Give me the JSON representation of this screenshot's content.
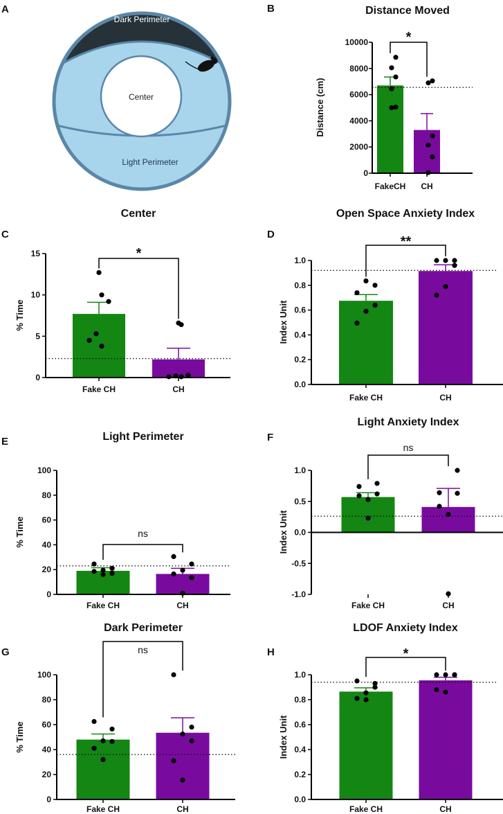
{
  "panel_letters": [
    "A",
    "B",
    "C",
    "D",
    "E",
    "F",
    "G",
    "H"
  ],
  "arena": {
    "dark_perimeter_label": "Dark Perimeter",
    "center_label": "Center",
    "light_perimeter_label": "Light Perimeter",
    "colors": {
      "dark": "#263238",
      "light": "#a8d4ec",
      "rim": "#5a87a8",
      "center": "#ffffff"
    }
  },
  "colors": {
    "fake": "#138613",
    "ch": "#780b9e"
  },
  "chart_data": [
    {
      "id": "B",
      "type": "bar",
      "title": "Distance Moved",
      "xlabel": "",
      "ylabel": "Distance (cm)",
      "categories": [
        "FakeCH",
        "CH"
      ],
      "values": [
        6700,
        3300
      ],
      "errors": [
        650,
        1250
      ],
      "points": [
        [
          8850,
          8050,
          7350,
          6450,
          5050,
          5000
        ],
        [
          7050,
          6900,
          2850,
          2150,
          1250,
          50
        ]
      ],
      "ylim": [
        0,
        10000
      ],
      "yticks": [
        0,
        2000,
        4000,
        6000,
        8000,
        10000
      ],
      "yticklabels": [
        "0",
        "2000",
        "4000",
        "6000",
        "8000",
        "10000"
      ],
      "baseline": 6550,
      "significance": "*"
    },
    {
      "id": "C",
      "type": "bar",
      "title": "Center",
      "xlabel": "",
      "ylabel": "% Time",
      "categories": [
        "Fake CH",
        "CH"
      ],
      "values": [
        7.7,
        2.2
      ],
      "errors": [
        1.4,
        1.35
      ],
      "points": [
        [
          12.7,
          10.0,
          9.2,
          5.3,
          4.5,
          3.8
        ],
        [
          6.6,
          6.4,
          0.3,
          0.2,
          0.1,
          0.1
        ]
      ],
      "ylim": [
        0,
        15
      ],
      "yticks": [
        0,
        5,
        10,
        15
      ],
      "yticklabels": [
        "0",
        "5",
        "10",
        "15"
      ],
      "baseline": 2.3,
      "significance": "*"
    },
    {
      "id": "D",
      "type": "bar",
      "title": "Open  Space Anxiety Index",
      "xlabel": "",
      "ylabel": "Index Unit",
      "categories": [
        "Fake CH",
        "CH"
      ],
      "values": [
        0.675,
        0.915
      ],
      "errors": [
        0.05,
        0.05
      ],
      "points": [
        [
          0.835,
          0.8,
          0.74,
          0.64,
          0.59,
          0.495
        ],
        [
          1.0,
          1.0,
          1.0,
          0.96,
          0.79,
          0.72
        ]
      ],
      "ylim": [
        0,
        1.0
      ],
      "yticks": [
        0,
        0.2,
        0.4,
        0.6,
        0.8,
        1.0
      ],
      "yticklabels": [
        "0.0",
        "0.2",
        "0.4",
        "0.6",
        "0.8",
        "1.0"
      ],
      "baseline": 0.92,
      "significance": "**"
    },
    {
      "id": "E",
      "type": "bar",
      "title": "Light  Perimeter",
      "xlabel": "",
      "ylabel": "% Time",
      "categories": [
        "Fake CH",
        "CH"
      ],
      "values": [
        19,
        16.5
      ],
      "errors": [
        2.5,
        4.5
      ],
      "points": [
        [
          24.5,
          21.0,
          19.5,
          18.5,
          17.0,
          16.0
        ],
        [
          30.5,
          24.5,
          19.5,
          16.5,
          13.5,
          1.0
        ]
      ],
      "ylim": [
        0,
        100
      ],
      "yticks": [
        0,
        20,
        40,
        60,
        80,
        100
      ],
      "yticklabels": [
        "0",
        "20",
        "40",
        "60",
        "80",
        "100"
      ],
      "baseline": 23,
      "significance": "ns"
    },
    {
      "id": "F",
      "type": "bar",
      "title": "Light Anxiety Index",
      "xlabel": "",
      "ylabel": "Index Unit",
      "categories": [
        "Fake CH",
        "CH"
      ],
      "values": [
        0.57,
        0.41
      ],
      "errors": [
        0.07,
        0.3
      ],
      "points": [
        [
          0.79,
          0.74,
          0.62,
          0.59,
          0.53,
          0.23
        ],
        [
          1.0,
          0.64,
          0.63,
          0.42,
          0.29,
          -0.99
        ]
      ],
      "ylim": [
        -1.0,
        1.0
      ],
      "yticks": [
        -1.0,
        -0.5,
        0,
        0.5,
        1.0
      ],
      "yticklabels": [
        "-1.0",
        "-0.5",
        "0.0",
        "0.5",
        "1.0"
      ],
      "baseline": 0.26,
      "significance": "ns"
    },
    {
      "id": "G",
      "type": "bar",
      "title": "Dark  Perimeter",
      "xlabel": "",
      "ylabel": "% Time",
      "categories": [
        "Fake CH",
        "CH"
      ],
      "values": [
        48,
        53.5
      ],
      "errors": [
        4.5,
        12
      ],
      "points": [
        [
          62.5,
          56.5,
          47.0,
          46.5,
          41.0,
          32.0
        ],
        [
          100.0,
          58.0,
          52.5,
          47.0,
          31.0,
          15.5
        ]
      ],
      "ylim": [
        0,
        100
      ],
      "yticks": [
        0,
        20,
        40,
        60,
        80,
        100
      ],
      "yticklabels": [
        "0",
        "20",
        "40",
        "60",
        "80",
        "100"
      ],
      "baseline": 36,
      "significance": "ns"
    },
    {
      "id": "H",
      "type": "bar",
      "title": "LDOF Anxiety Index",
      "xlabel": "",
      "ylabel": "Index Unit",
      "categories": [
        "Fake CH",
        "CH"
      ],
      "values": [
        0.865,
        0.955
      ],
      "errors": [
        0.03,
        0.025
      ],
      "points": [
        [
          0.95,
          0.93,
          0.9,
          0.855,
          0.81,
          0.8
        ],
        [
          1.0,
          1.0,
          1.0,
          1.0,
          0.88,
          0.86
        ]
      ],
      "ylim": [
        0,
        1.0
      ],
      "yticks": [
        0,
        0.2,
        0.4,
        0.6,
        0.8,
        1.0
      ],
      "yticklabels": [
        "0.0",
        "0.2",
        "0.4",
        "0.6",
        "0.8",
        "1.0"
      ],
      "baseline": 0.94,
      "significance": "*"
    }
  ]
}
